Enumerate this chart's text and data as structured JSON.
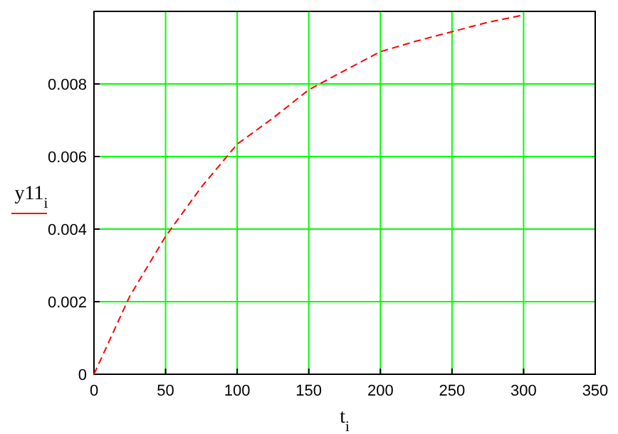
{
  "chart_data": {
    "type": "line",
    "xlabel": "t$_{i}$",
    "x": [
      0,
      25,
      50,
      75,
      100,
      125,
      150,
      175,
      200,
      225,
      250,
      275,
      300
    ],
    "series": [
      {
        "name": "y11$_{i}$",
        "color": "#ff0000",
        "values": [
          0,
          0.00215,
          0.0038,
          0.00516,
          0.00634,
          0.00706,
          0.00784,
          0.00837,
          0.00889,
          0.00918,
          0.00944,
          0.0097,
          0.0099
        ]
      }
    ],
    "xlim": [
      0,
      350
    ],
    "xticks": [
      0,
      50,
      100,
      150,
      200,
      250,
      300,
      350
    ],
    "ylim": [
      0,
      0.01
    ],
    "yticks": [
      0,
      0.002,
      0.004,
      0.006,
      0.008
    ],
    "grid": true,
    "legend": "left",
    "line_style": "dashed",
    "marker": "none"
  }
}
